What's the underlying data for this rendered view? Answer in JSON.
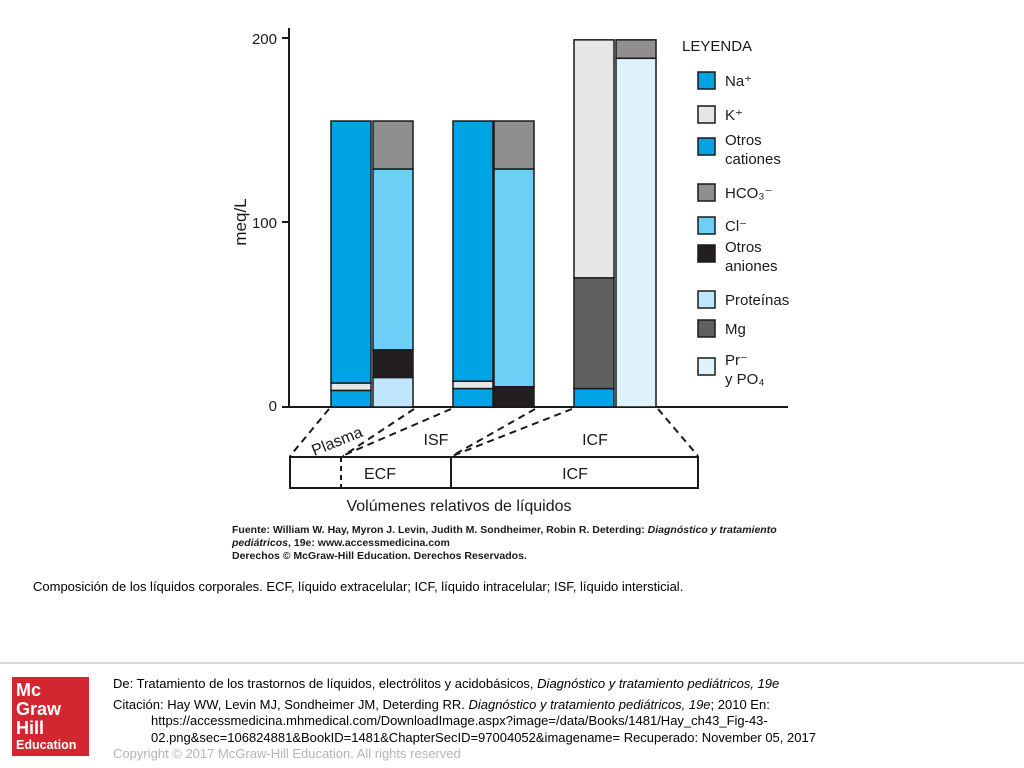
{
  "chart_data": {
    "type": "bar",
    "stacked": true,
    "ylabel": "meq/L",
    "ylim": [
      0,
      200
    ],
    "yticks": [
      "0",
      "100",
      "200"
    ],
    "legend_title": "LEYENDA",
    "legend_placement": "right",
    "legend": [
      {
        "key": "na",
        "label": "Na⁺",
        "color": "#00a4e4"
      },
      {
        "key": "k",
        "label": "K⁺",
        "color": "#e6e6e6"
      },
      {
        "key": "otros_cationes",
        "label": "Otros cationes",
        "color": "#00a4e4"
      },
      {
        "key": "hco3",
        "label": "HCO₃⁻",
        "color": "#8f8f8f"
      },
      {
        "key": "cl",
        "label": "Cl⁻",
        "color": "#6dcff6"
      },
      {
        "key": "otros_aniones",
        "label": "Otros aniones",
        "color": "#231f20"
      },
      {
        "key": "proteinas",
        "label": "Proteínas",
        "color": "#bfe6fa"
      },
      {
        "key": "mg",
        "label": "Mg",
        "color": "#606060"
      },
      {
        "key": "pr_po4",
        "label": "Pr⁻ y PO₄",
        "color": "#dff3fc"
      }
    ],
    "bars": [
      {
        "group": "Plasma",
        "segments": [
          {
            "key": "otros_cationes",
            "value": 9
          },
          {
            "key": "k",
            "value": 4
          },
          {
            "key": "na",
            "value": 142
          }
        ]
      },
      {
        "group": "Plasma",
        "segments": [
          {
            "key": "proteinas",
            "value": 16
          },
          {
            "key": "otros_aniones",
            "value": 15
          },
          {
            "key": "cl",
            "value": 98
          },
          {
            "key": "hco3",
            "value": 26
          }
        ]
      },
      {
        "group": "ISF",
        "segments": [
          {
            "key": "otros_cationes",
            "value": 10
          },
          {
            "key": "k",
            "value": 4
          },
          {
            "key": "na",
            "value": 141
          }
        ]
      },
      {
        "group": "ISF",
        "segments": [
          {
            "key": "otros_aniones",
            "value": 11
          },
          {
            "key": "cl",
            "value": 118
          },
          {
            "key": "hco3",
            "value": 26
          }
        ]
      },
      {
        "group": "ICF",
        "segments": [
          {
            "key": "otros_cationes",
            "value": 10
          },
          {
            "key": "mg",
            "value": 60
          },
          {
            "key": "k",
            "value": 129
          }
        ]
      },
      {
        "group": "ICF",
        "segments": [
          {
            "key": "pr_po4",
            "value": 189
          },
          {
            "key": "hco3",
            "value": 10
          }
        ]
      }
    ],
    "group_labels": [
      "Plasma",
      "ISF",
      "ICF"
    ],
    "volume_boxes": [
      "ECF",
      "ICF"
    ],
    "volume_title": "Volúmenes relativos de líquidos"
  },
  "source": {
    "fuente_prefix": "Fuente: William W. Hay, Myron J. Levin, Judith M. Sondheimer, Robin R. Deterding: ",
    "fuente_book": "Diagnóstico y tratamiento pediátricos",
    "fuente_suffix": ", 19e: www.accessmedicina.com",
    "derechos": "Derechos © McGraw-Hill Education. Derechos Reservados."
  },
  "caption": "Composición de los líquidos corporales. ECF, líquido extracelular; ICF, líquido intracelular; ISF, líquido intersticial.",
  "footer": {
    "logo_lines": [
      "Mc",
      "Graw",
      "Hill",
      "Education"
    ],
    "de_prefix": "De: Tratamiento de los trastornos de líquidos, electrólitos y acidobásicos, ",
    "de_book": "Diagnóstico y tratamiento pediátricos, 19e",
    "cita_prefix": "Citación: Hay WW, Levin MJ, Sondheimer JM, Deterding RR. ",
    "cita_book": "Diagnóstico y tratamiento pediátricos, 19e",
    "cita_suffix": "; 2010 En:",
    "url_line1": "https://accessmedicina.mhmedical.com/DownloadImage.aspx?image=/data/Books/1481/Hay_ch43_Fig-43-",
    "url_line2": "02.png&sec=106824881&BookID=1481&ChapterSecID=97004052&imagename= Recuperado: November 05, 2017",
    "copyright": "Copyright © 2017 McGraw-Hill Education. All rights reserved"
  }
}
